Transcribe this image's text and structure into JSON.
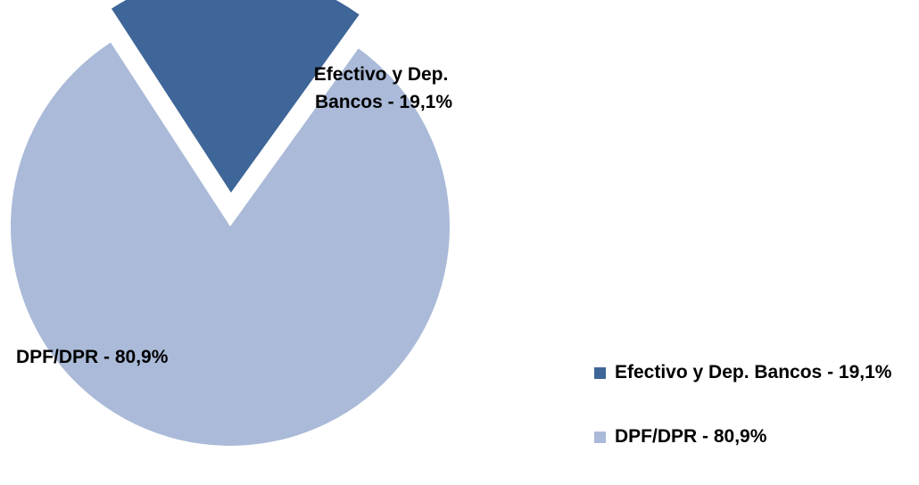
{
  "chart_data": {
    "type": "pie",
    "title": "",
    "slices": [
      {
        "label": "Efectivo y Dep. Bancos - 19,1%",
        "value": 19.1,
        "color": "#3f6698",
        "exploded": true,
        "label_lines": [
          "Efectivo y Dep.",
          "Bancos - 19,1%"
        ]
      },
      {
        "label": "DPF/DPR - 80,9%",
        "value": 80.9,
        "color": "#aabad8",
        "exploded": false,
        "label_lines": [
          "DPF/DPR - 80,9%"
        ]
      }
    ],
    "legend": {
      "position": "bottom-right",
      "items": [
        {
          "label": "Efectivo y Dep. Bancos - 19,1%",
          "color": "#3f6698"
        },
        {
          "label": "DPF/DPR - 80,9%",
          "color": "#aabad8"
        }
      ]
    }
  }
}
